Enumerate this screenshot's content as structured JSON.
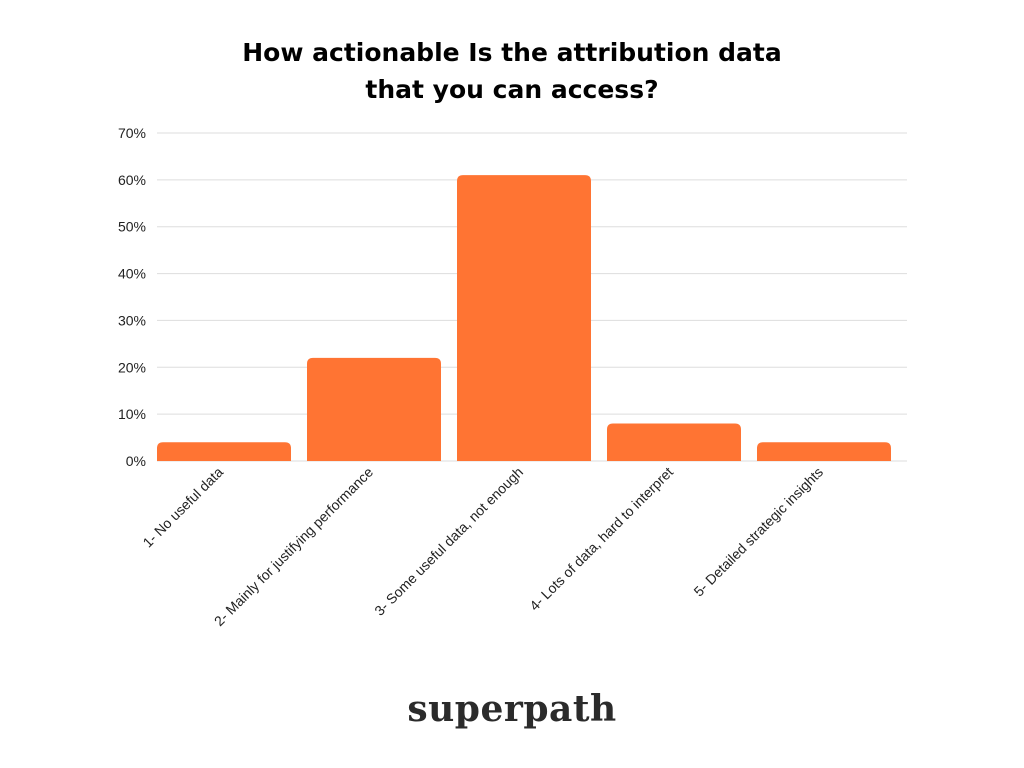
{
  "chart_data": {
    "type": "bar",
    "title_lines": [
      "How actionable Is the attribution data",
      "that you can access?"
    ],
    "categories": [
      "1- No useful data",
      "2- Mainly for justifying performance",
      "3- Some useful data, not enough",
      "4- Lots of  data, hard to interpret",
      "5- Detailed strategic insights"
    ],
    "values": [
      4,
      22,
      61,
      8,
      4
    ],
    "value_unit": "%",
    "ylim": [
      0,
      70
    ],
    "yticks": [
      0,
      10,
      20,
      30,
      40,
      50,
      60,
      70
    ],
    "ytick_labels": [
      "0%",
      "10%",
      "20%",
      "30%",
      "40%",
      "50%",
      "60%",
      "70%"
    ],
    "grid": true,
    "bar_color": "#FF7433",
    "grid_color": "#DDDDDD"
  },
  "brand": {
    "name": "superpath"
  }
}
